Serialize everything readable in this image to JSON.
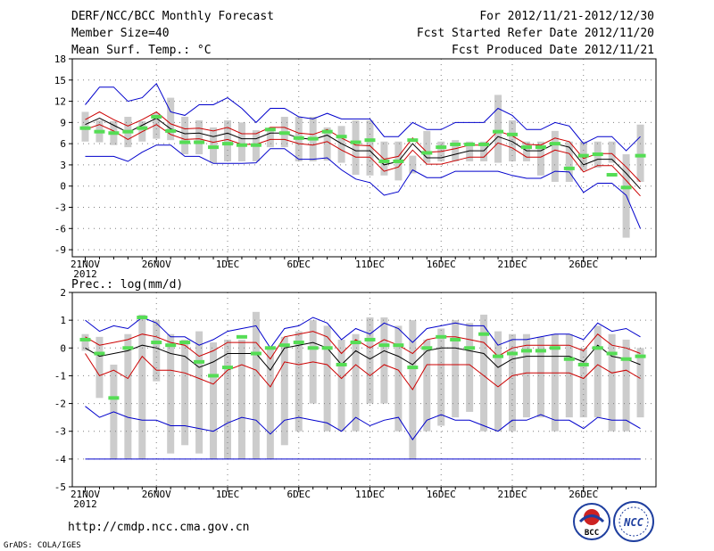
{
  "header": {
    "title": "DERF/NCC/BCC Monthly Forecast",
    "member_size": "Member Size=40",
    "variable": "Mean Surf. Temp.: °C",
    "period": "For 2012/11/21-2012/12/30",
    "started": "Fcst Started Refer Date 2012/11/20",
    "produced": "Fcst Produced Date 2012/11/21"
  },
  "colors": {
    "box": "#cccccc",
    "mean": "#000000",
    "inner": "#cc0000",
    "outer": "#0000cc",
    "marker": "#55dd55",
    "grid": "#808080"
  },
  "chart_data": [
    {
      "type": "box-ensemble",
      "title": "Mean Surf. Temp.: °C",
      "ylabel": "Mean Surf. Temp.: °C",
      "ylim": [
        -10,
        18
      ],
      "y_ticks": [
        -9,
        -6,
        -3,
        0,
        3,
        6,
        9,
        12,
        15,
        18
      ],
      "x_ticks": [
        "21NOV",
        "26NOV",
        "1DEC",
        "6DEC",
        "11DEC",
        "16DEC",
        "21DEC",
        "26DEC"
      ],
      "x_year": "2012",
      "n_days": 40,
      "box_top": [
        10.5,
        9.3,
        9.2,
        9.8,
        9.2,
        10.3,
        12.5,
        9.8,
        9.3,
        8.3,
        9.3,
        9.0,
        7.9,
        7.8,
        9.8,
        9.8,
        9.8,
        8.3,
        8.5,
        9.3,
        9.3,
        6.3,
        6.3,
        4.3,
        7.8,
        6.3,
        6.5,
        6.3,
        6.3,
        12.9,
        9.3,
        6.3,
        6.3,
        7.8,
        6.3,
        6.3,
        6.3,
        6.3,
        4.5,
        8.7
      ],
      "box_bottom": [
        6.3,
        6.2,
        5.8,
        5.5,
        6.3,
        6.7,
        6.5,
        4.5,
        4.5,
        3.3,
        3.5,
        3.5,
        3.5,
        5.5,
        5.5,
        3.5,
        3.5,
        3.6,
        3.3,
        1.6,
        1.5,
        1.5,
        0.8,
        1.8,
        3.3,
        3.5,
        3.5,
        3.5,
        3.5,
        3.3,
        3.5,
        3.5,
        1.5,
        0.6,
        0.6,
        2.2,
        2.6,
        3.3,
        -7.3,
        0.6
      ],
      "marker": [
        8.2,
        7.7,
        7.5,
        7.7,
        8.2,
        9.8,
        7.8,
        6.2,
        6.2,
        5.5,
        6.0,
        5.8,
        5.8,
        8.0,
        7.5,
        6.8,
        6.7,
        7.7,
        7.0,
        6.2,
        6.5,
        3.5,
        3.5,
        6.5,
        4.7,
        5.5,
        5.9,
        5.9,
        5.9,
        7.7,
        7.3,
        5.5,
        5.5,
        6.0,
        2.5,
        4.3,
        4.5,
        1.6,
        -0.2,
        4.3
      ],
      "series": [
        {
          "name": "mean",
          "values": [
            8.7,
            9.6,
            8.6,
            7.6,
            8.6,
            9.6,
            8.1,
            7.4,
            7.5,
            7.0,
            7.5,
            6.7,
            6.7,
            7.5,
            7.5,
            6.8,
            6.6,
            7.2,
            6.0,
            5.0,
            5.0,
            3.0,
            3.5,
            6.0,
            4.0,
            4.0,
            4.5,
            5.0,
            5.0,
            7.0,
            6.3,
            5.0,
            5.0,
            6.0,
            5.5,
            3.0,
            3.8,
            3.8,
            1.8,
            -0.4
          ]
        },
        {
          "name": "upper-inner",
          "values": [
            9.4,
            10.5,
            9.4,
            8.5,
            9.4,
            10.5,
            8.8,
            8.1,
            8.2,
            7.8,
            8.3,
            7.4,
            7.4,
            8.3,
            8.3,
            7.5,
            7.3,
            8.0,
            6.8,
            5.8,
            5.7,
            3.8,
            4.2,
            6.8,
            4.8,
            4.9,
            5.3,
            5.8,
            5.8,
            7.8,
            7.1,
            5.9,
            5.8,
            6.8,
            6.3,
            3.9,
            4.6,
            4.6,
            2.7,
            0.6
          ]
        },
        {
          "name": "lower-inner",
          "values": [
            8.0,
            8.7,
            7.8,
            6.6,
            7.7,
            8.7,
            7.3,
            6.6,
            6.7,
            6.2,
            6.6,
            5.9,
            5.9,
            6.6,
            6.6,
            6.0,
            5.8,
            6.3,
            5.1,
            4.1,
            4.1,
            2.1,
            2.7,
            5.1,
            3.1,
            3.1,
            3.6,
            4.1,
            4.1,
            6.1,
            5.4,
            4.1,
            4.1,
            5.1,
            4.6,
            2.0,
            2.9,
            2.9,
            0.8,
            -1.4
          ]
        },
        {
          "name": "upper-outer",
          "values": [
            11.5,
            14.0,
            14.0,
            12.0,
            12.5,
            14.5,
            10.5,
            10.0,
            11.5,
            11.5,
            12.5,
            11.0,
            9.0,
            11.0,
            11.0,
            9.8,
            9.5,
            10.3,
            9.5,
            9.5,
            9.5,
            7.0,
            7.0,
            9.0,
            8.0,
            8.0,
            9.0,
            9.0,
            9.0,
            11.0,
            10.0,
            8.0,
            8.0,
            9.0,
            8.5,
            6.0,
            7.0,
            7.0,
            5.0,
            7.0
          ]
        },
        {
          "name": "lower-outer",
          "values": [
            4.2,
            4.2,
            4.2,
            3.5,
            4.8,
            5.8,
            5.8,
            4.2,
            4.2,
            3.2,
            3.2,
            3.2,
            3.3,
            5.3,
            5.3,
            3.8,
            3.8,
            4.0,
            2.3,
            1.0,
            0.5,
            -1.3,
            -0.8,
            2.3,
            1.2,
            1.2,
            2.1,
            2.1,
            2.1,
            2.1,
            1.5,
            1.1,
            1.1,
            2.1,
            2.0,
            -0.9,
            0.4,
            0.4,
            -1.3,
            -6.0
          ]
        }
      ]
    },
    {
      "type": "box-ensemble",
      "title": "Prec.: log(mm/d)",
      "ylabel": "Prec.: log(mm/d)",
      "ylim": [
        -5,
        2
      ],
      "y_ticks": [
        -5,
        -4,
        -3,
        -2,
        -1,
        0,
        1,
        2
      ],
      "x_ticks": [
        "21NOV",
        "26NOV",
        "1DEC",
        "6DEC",
        "11DEC",
        "16DEC",
        "21DEC",
        "26DEC"
      ],
      "x_year": "2012",
      "n_days": 40,
      "baseline": -4,
      "box_top": [
        0.5,
        0.4,
        -0.6,
        0.5,
        1.2,
        1.0,
        0.5,
        0.3,
        0.6,
        0.2,
        0.3,
        0.3,
        1.3,
        0.0,
        0.4,
        0.6,
        1.0,
        0.8,
        0.3,
        0.5,
        1.1,
        1.1,
        0.8,
        1.0,
        0.3,
        0.7,
        1.0,
        0.9,
        1.2,
        0.6,
        0.5,
        0.5,
        0.4,
        0.5,
        0.5,
        0.0,
        0.8,
        0.5,
        0.3,
        0.0
      ],
      "box_bottom": [
        -0.1,
        -1.8,
        -4.0,
        -4.0,
        -4.0,
        -1.2,
        -3.8,
        -3.5,
        -3.8,
        -4.0,
        -4.0,
        -4.0,
        -4.0,
        -4.0,
        -3.5,
        -3.0,
        -2.0,
        -3.0,
        -3.0,
        -3.0,
        -2.0,
        -2.0,
        -3.0,
        -4.0,
        -3.0,
        -2.8,
        -2.5,
        -2.3,
        -3.0,
        -3.0,
        -3.0,
        -2.5,
        -2.5,
        -3.0,
        -2.5,
        -2.5,
        -2.5,
        -3.0,
        -3.0,
        -2.5
      ],
      "marker": [
        0.3,
        -0.2,
        -1.8,
        0.0,
        1.1,
        0.2,
        0.1,
        0.2,
        -0.5,
        -1.0,
        -0.7,
        0.4,
        -0.2,
        0.0,
        0.1,
        0.2,
        0.0,
        0.0,
        -0.6,
        0.2,
        0.3,
        0.1,
        0.1,
        -0.7,
        0.0,
        0.4,
        0.3,
        0.0,
        0.5,
        -0.3,
        -0.2,
        -0.1,
        -0.1,
        0.0,
        -0.4,
        -0.6,
        0.0,
        -0.2,
        -0.4,
        -0.3
      ],
      "series": [
        {
          "name": "mean",
          "values": [
            0.0,
            -0.3,
            -0.2,
            -0.1,
            0.1,
            0.0,
            -0.2,
            -0.3,
            -0.7,
            -0.5,
            -0.2,
            -0.2,
            -0.2,
            -0.8,
            0.0,
            0.1,
            0.2,
            0.0,
            -0.6,
            -0.1,
            -0.4,
            -0.1,
            -0.3,
            -0.6,
            -0.1,
            0.0,
            0.0,
            -0.1,
            -0.2,
            -0.7,
            -0.4,
            -0.3,
            -0.3,
            -0.3,
            -0.3,
            -0.5,
            0.1,
            -0.3,
            -0.4,
            -0.6
          ]
        },
        {
          "name": "upper-inner",
          "values": [
            0.4,
            0.1,
            0.2,
            0.3,
            0.5,
            0.4,
            0.2,
            0.1,
            -0.3,
            -0.1,
            0.2,
            0.2,
            0.2,
            -0.4,
            0.4,
            0.5,
            0.6,
            0.4,
            -0.2,
            0.3,
            0.0,
            0.3,
            0.1,
            -0.2,
            0.3,
            0.4,
            0.4,
            0.3,
            0.2,
            -0.3,
            0.0,
            0.1,
            0.1,
            0.1,
            0.1,
            -0.1,
            0.5,
            0.1,
            0.0,
            -0.2
          ]
        },
        {
          "name": "lower-inner",
          "values": [
            -0.2,
            -1.0,
            -0.8,
            -1.1,
            -0.3,
            -0.8,
            -0.8,
            -0.9,
            -1.1,
            -1.3,
            -0.8,
            -0.6,
            -0.8,
            -1.4,
            -0.5,
            -0.6,
            -0.5,
            -0.6,
            -1.1,
            -0.6,
            -1.0,
            -0.6,
            -0.8,
            -1.5,
            -0.6,
            -0.6,
            -0.6,
            -0.6,
            -1.0,
            -1.4,
            -1.0,
            -0.9,
            -0.9,
            -0.9,
            -0.9,
            -1.1,
            -0.6,
            -0.9,
            -0.8,
            -1.1
          ]
        },
        {
          "name": "upper-outer",
          "values": [
            1.0,
            0.6,
            0.8,
            0.7,
            1.1,
            0.9,
            0.4,
            0.4,
            0.1,
            0.3,
            0.6,
            0.7,
            0.8,
            0.0,
            0.7,
            0.8,
            1.1,
            0.9,
            0.3,
            0.7,
            0.5,
            0.9,
            0.7,
            0.2,
            0.7,
            0.8,
            0.9,
            0.8,
            0.8,
            0.1,
            0.3,
            0.3,
            0.4,
            0.5,
            0.5,
            0.3,
            0.9,
            0.6,
            0.7,
            0.4
          ]
        },
        {
          "name": "lower-outer",
          "values": [
            -2.1,
            -2.5,
            -2.3,
            -2.5,
            -2.6,
            -2.6,
            -2.8,
            -2.8,
            -2.9,
            -3.0,
            -2.7,
            -2.5,
            -2.6,
            -3.1,
            -2.6,
            -2.5,
            -2.6,
            -2.7,
            -3.0,
            -2.5,
            -2.8,
            -2.6,
            -2.5,
            -3.3,
            -2.6,
            -2.4,
            -2.6,
            -2.6,
            -2.8,
            -3.0,
            -2.6,
            -2.6,
            -2.4,
            -2.6,
            -2.6,
            -2.9,
            -2.5,
            -2.6,
            -2.6,
            -2.9
          ]
        }
      ]
    }
  ],
  "footer": {
    "url": "http://cmdp.ncc.cma.gov.cn",
    "credit": "GrADS: COLA/IGES",
    "logo_bcc": "BCC",
    "logo_ncc": "NCC"
  }
}
